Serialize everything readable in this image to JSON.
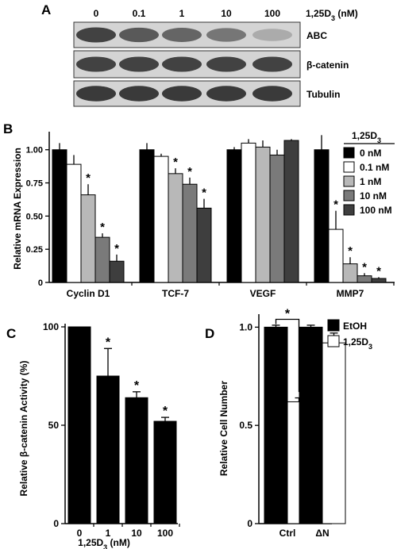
{
  "panel_a": {
    "panel_label": "A",
    "conc_header": "1,25D3 (nM)",
    "concentrations": [
      "0",
      "0.1",
      "1",
      "10",
      "100"
    ],
    "blots": [
      {
        "label": "ABC",
        "intensities": [
          0.85,
          0.72,
          0.65,
          0.55,
          0.25
        ]
      },
      {
        "label": "β-catenin",
        "intensities": [
          0.85,
          0.85,
          0.85,
          0.85,
          0.85
        ]
      },
      {
        "label": "Tubulin",
        "intensities": [
          0.9,
          0.9,
          0.9,
          0.9,
          0.9
        ]
      }
    ]
  },
  "chart_data": [
    {
      "panel_label": "B",
      "type": "bar",
      "ylabel": "Relative mRNA Expression",
      "ylim": [
        0,
        1.1
      ],
      "yticks": [
        "0",
        "0.25",
        "0.50",
        "0.75",
        "1.00"
      ],
      "categories": [
        "Cyclin D1",
        "TCF-7",
        "VEGF",
        "MMP7"
      ],
      "legend_title": "1,25D3",
      "legend_position": "top-right",
      "series": [
        {
          "name": "0 nM",
          "color": "#000000",
          "values": [
            1.0,
            1.0,
            1.0,
            1.0
          ],
          "errors": [
            0.05,
            0.05,
            0.02,
            0.11
          ]
        },
        {
          "name": "0.1 nM",
          "color": "#ffffff",
          "values": [
            0.89,
            0.95,
            1.05,
            0.4
          ],
          "errors": [
            0.07,
            0.02,
            0.03,
            0.14
          ]
        },
        {
          "name": "1 nM",
          "color": "#b8b8b8",
          "values": [
            0.66,
            0.82,
            1.02,
            0.14
          ],
          "errors": [
            0.08,
            0.04,
            0.05,
            0.05
          ]
        },
        {
          "name": "10 nM",
          "color": "#7a7a7a",
          "values": [
            0.34,
            0.74,
            0.96,
            0.05
          ],
          "errors": [
            0.03,
            0.05,
            0.04,
            0.02
          ]
        },
        {
          "name": "100 nM",
          "color": "#3e3e3e",
          "values": [
            0.16,
            0.56,
            1.07,
            0.03
          ],
          "errors": [
            0.05,
            0.07,
            0.01,
            0.01
          ]
        }
      ],
      "significance": [
        [
          false,
          false,
          false,
          false
        ],
        [
          false,
          false,
          false,
          true
        ],
        [
          true,
          true,
          false,
          true
        ],
        [
          true,
          true,
          false,
          true
        ],
        [
          true,
          true,
          false,
          true
        ]
      ],
      "sig_marker": "*"
    },
    {
      "panel_label": "C",
      "type": "bar",
      "ylabel": "Relative β-catenin Activity (%)",
      "xlabel": "1,25D3 (nM)",
      "ylim": [
        0,
        100
      ],
      "yticks": [
        "0",
        "50",
        "100"
      ],
      "categories": [
        "0",
        "1",
        "10",
        "100"
      ],
      "series": [
        {
          "color": "#000000",
          "values": [
            100,
            75,
            64,
            52
          ],
          "errors": [
            0,
            14,
            3,
            2
          ]
        }
      ],
      "significance": [
        false,
        true,
        true,
        true
      ],
      "sig_marker": "*"
    },
    {
      "panel_label": "D",
      "type": "bar",
      "ylabel": "Relative Cell Number",
      "ylim": [
        0,
        1.05
      ],
      "yticks": [
        "0",
        "0.5",
        "1.0"
      ],
      "categories": [
        "Ctrl",
        "ΔN"
      ],
      "legend_position": "top-right",
      "series": [
        {
          "name": "EtOH",
          "color": "#000000",
          "values": [
            1.0,
            1.0
          ],
          "errors": [
            0.01,
            0.01
          ]
        },
        {
          "name": "1,25D3",
          "color": "#ffffff",
          "values": [
            0.62,
            0.92
          ],
          "errors": [
            0.02,
            0.05
          ]
        }
      ],
      "bracket_marker": "*"
    }
  ]
}
